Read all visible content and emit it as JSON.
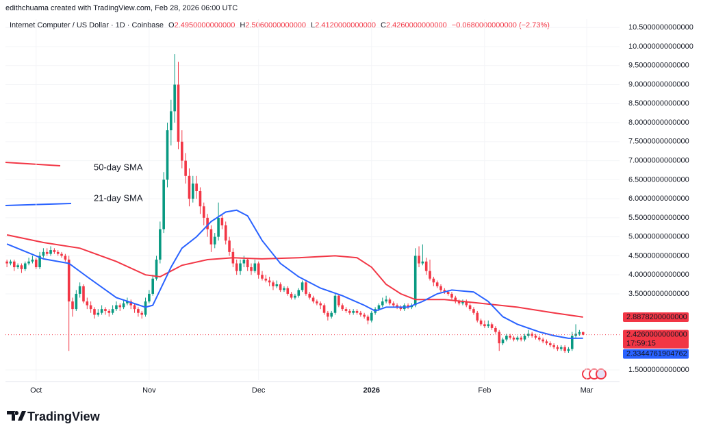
{
  "header": {
    "credit": "edithchuama created with TradingView.com, Feb 28, 2026 06:00 UTC",
    "symbol": "Internet Computer / US Dollar · 1D · Coinbase",
    "ohlc": [
      {
        "label": "O",
        "value": "2.4950000000000"
      },
      {
        "label": "H",
        "value": "2.5060000000000"
      },
      {
        "label": "L",
        "value": "2.4120000000000"
      },
      {
        "label": "C",
        "value": "2.4260000000000"
      }
    ],
    "change": "−0.0680000000000 (−2.73%)"
  },
  "chart_data": {
    "type": "candlestick",
    "up_color": "#089981",
    "down_color": "#f23645",
    "grid": true,
    "xlim": [
      -0.4,
      168
    ],
    "xticks": [
      {
        "value": 8,
        "label": "Oct"
      },
      {
        "value": 39,
        "label": "Nov"
      },
      {
        "value": 69,
        "label": "Dec"
      },
      {
        "value": 100,
        "label": "2026"
      },
      {
        "value": 131,
        "label": "Feb"
      },
      {
        "value": 159,
        "label": "Mar"
      }
    ],
    "ylim": [
      1.23,
      10.72
    ],
    "yticks": [
      {
        "value": 1.5,
        "label": "1.5000000000000"
      },
      {
        "value": 3.5,
        "label": "3.5000000000000"
      },
      {
        "value": 4,
        "label": "4.0000000000000"
      },
      {
        "value": 4.5,
        "label": "4.5000000000000"
      },
      {
        "value": 5,
        "label": "5.0000000000000"
      },
      {
        "value": 5.5,
        "label": "5.5000000000000"
      },
      {
        "value": 6,
        "label": "6.0000000000000"
      },
      {
        "value": 6.5,
        "label": "6.5000000000000"
      },
      {
        "value": 7,
        "label": "7.0000000000000"
      },
      {
        "value": 7.5,
        "label": "7.5000000000000"
      },
      {
        "value": 8,
        "label": "8.0000000000000"
      },
      {
        "value": 8.5,
        "label": "8.5000000000000"
      },
      {
        "value": 9,
        "label": "9.0000000000000"
      },
      {
        "value": 9.5,
        "label": "9.5000000000000"
      },
      {
        "value": 10,
        "label": "10.0000000000000"
      },
      {
        "value": 10.5,
        "label": "10.5000000000000"
      }
    ],
    "candles": [
      [
        4.35,
        4.4,
        4.2,
        4.3
      ],
      [
        4.3,
        4.4,
        4.25,
        4.35
      ],
      [
        4.35,
        4.4,
        4.1,
        4.2
      ],
      [
        4.2,
        4.3,
        4.15,
        4.25
      ],
      [
        4.25,
        4.3,
        4.05,
        4.15
      ],
      [
        4.15,
        4.35,
        4.1,
        4.3
      ],
      [
        4.3,
        4.45,
        4.25,
        4.35
      ],
      [
        4.35,
        4.5,
        4.3,
        4.4
      ],
      [
        4.4,
        4.45,
        4.15,
        4.2
      ],
      [
        4.2,
        4.6,
        4.15,
        4.5
      ],
      [
        4.5,
        4.7,
        4.45,
        4.6
      ],
      [
        4.6,
        4.7,
        4.5,
        4.55
      ],
      [
        4.55,
        4.75,
        4.5,
        4.65
      ],
      [
        4.65,
        4.7,
        4.55,
        4.6
      ],
      [
        4.6,
        4.65,
        4.5,
        4.55
      ],
      [
        4.55,
        4.6,
        4.45,
        4.5
      ],
      [
        4.5,
        4.55,
        4.35,
        4.4
      ],
      [
        4.4,
        4.5,
        2.0,
        3.3
      ],
      [
        3.3,
        3.4,
        2.9,
        3.1
      ],
      [
        3.1,
        3.6,
        3.05,
        3.5
      ],
      [
        3.5,
        3.8,
        3.4,
        3.7
      ],
      [
        3.7,
        3.75,
        3.25,
        3.3
      ],
      [
        3.3,
        3.4,
        3.1,
        3.2
      ],
      [
        3.2,
        3.3,
        3.0,
        3.1
      ],
      [
        3.1,
        3.15,
        2.85,
        2.95
      ],
      [
        2.95,
        3.1,
        2.9,
        3.0
      ],
      [
        3.0,
        3.2,
        2.95,
        3.1
      ],
      [
        3.1,
        3.15,
        2.95,
        3.05
      ],
      [
        3.05,
        3.1,
        2.9,
        3.0
      ],
      [
        3.0,
        3.2,
        2.95,
        3.1
      ],
      [
        3.1,
        3.3,
        3.05,
        3.2
      ],
      [
        3.2,
        3.25,
        3.05,
        3.15
      ],
      [
        3.15,
        3.35,
        3.1,
        3.25
      ],
      [
        3.25,
        3.4,
        3.2,
        3.3
      ],
      [
        3.3,
        3.35,
        3.1,
        3.2
      ],
      [
        3.2,
        3.25,
        3.0,
        3.1
      ],
      [
        3.1,
        3.15,
        2.9,
        3.0
      ],
      [
        3.0,
        3.05,
        2.85,
        2.95
      ],
      [
        2.95,
        3.4,
        2.9,
        3.3
      ],
      [
        3.3,
        3.6,
        3.25,
        3.5
      ],
      [
        3.5,
        4.0,
        3.45,
        3.9
      ],
      [
        3.9,
        4.5,
        3.85,
        4.4
      ],
      [
        4.4,
        5.4,
        4.3,
        5.2
      ],
      [
        5.2,
        6.7,
        5.1,
        6.5
      ],
      [
        6.5,
        8.0,
        6.3,
        7.8
      ],
      [
        7.8,
        8.6,
        7.4,
        8.3
      ],
      [
        8.3,
        9.8,
        8.0,
        9.0
      ],
      [
        9.0,
        9.6,
        7.3,
        7.5
      ],
      [
        7.5,
        7.8,
        6.8,
        7.0
      ],
      [
        7.0,
        7.2,
        6.4,
        6.6
      ],
      [
        6.6,
        6.8,
        5.8,
        6.0
      ],
      [
        6.0,
        6.6,
        5.9,
        6.4
      ],
      [
        6.4,
        6.6,
        6.0,
        6.2
      ],
      [
        6.2,
        6.3,
        5.6,
        5.8
      ],
      [
        5.8,
        5.9,
        5.3,
        5.5
      ],
      [
        5.5,
        5.6,
        5.0,
        5.2
      ],
      [
        5.2,
        5.3,
        4.6,
        4.8
      ],
      [
        4.8,
        5.1,
        4.7,
        5.0
      ],
      [
        5.0,
        5.9,
        4.9,
        5.5
      ],
      [
        5.5,
        5.6,
        5.2,
        5.3
      ],
      [
        5.3,
        5.4,
        4.8,
        4.9
      ],
      [
        4.9,
        5.0,
        4.5,
        4.6
      ],
      [
        4.6,
        4.7,
        4.2,
        4.3
      ],
      [
        4.3,
        4.4,
        4.0,
        4.1
      ],
      [
        4.1,
        4.4,
        4.0,
        4.3
      ],
      [
        4.3,
        4.5,
        4.2,
        4.4
      ],
      [
        4.4,
        4.45,
        4.1,
        4.2
      ],
      [
        4.2,
        4.3,
        4.0,
        4.1
      ],
      [
        4.1,
        4.4,
        4.05,
        4.3
      ],
      [
        4.3,
        4.35,
        3.9,
        4.0
      ],
      [
        4.0,
        4.1,
        3.85,
        3.9
      ],
      [
        3.9,
        4.0,
        3.8,
        3.85
      ],
      [
        3.85,
        3.95,
        3.7,
        3.8
      ],
      [
        3.8,
        3.85,
        3.6,
        3.7
      ],
      [
        3.7,
        3.85,
        3.65,
        3.75
      ],
      [
        3.75,
        3.8,
        3.55,
        3.6
      ],
      [
        3.6,
        3.7,
        3.55,
        3.65
      ],
      [
        3.65,
        3.7,
        3.45,
        3.5
      ],
      [
        3.5,
        3.55,
        3.35,
        3.4
      ],
      [
        3.4,
        3.5,
        3.35,
        3.45
      ],
      [
        3.45,
        3.65,
        3.4,
        3.6
      ],
      [
        3.6,
        3.85,
        3.55,
        3.8
      ],
      [
        3.8,
        3.85,
        3.45,
        3.5
      ],
      [
        3.5,
        3.55,
        3.35,
        3.4
      ],
      [
        3.4,
        3.45,
        3.25,
        3.3
      ],
      [
        3.3,
        3.35,
        3.2,
        3.25
      ],
      [
        3.25,
        3.3,
        3.1,
        3.2
      ],
      [
        3.2,
        3.25,
        2.95,
        3.0
      ],
      [
        3.0,
        3.05,
        2.8,
        2.9
      ],
      [
        2.9,
        3.05,
        2.85,
        3.0
      ],
      [
        3.0,
        3.5,
        2.95,
        3.45
      ],
      [
        3.45,
        3.5,
        3.15,
        3.2
      ],
      [
        3.2,
        3.25,
        3.05,
        3.1
      ],
      [
        3.1,
        3.15,
        3.0,
        3.05
      ],
      [
        3.05,
        3.1,
        2.95,
        3.0
      ],
      [
        3.0,
        3.1,
        2.95,
        3.05
      ],
      [
        3.05,
        3.1,
        2.95,
        3.0
      ],
      [
        3.0,
        3.05,
        2.9,
        2.95
      ],
      [
        2.95,
        3.0,
        2.85,
        2.9
      ],
      [
        2.9,
        2.95,
        2.7,
        2.8
      ],
      [
        2.8,
        3.05,
        2.75,
        3.0
      ],
      [
        3.0,
        3.15,
        2.95,
        3.1
      ],
      [
        3.1,
        3.25,
        3.05,
        3.2
      ],
      [
        3.2,
        3.4,
        3.15,
        3.3
      ],
      [
        3.3,
        3.45,
        3.25,
        3.35
      ],
      [
        3.35,
        3.4,
        3.2,
        3.25
      ],
      [
        3.25,
        3.3,
        3.15,
        3.2
      ],
      [
        3.2,
        3.25,
        3.1,
        3.15
      ],
      [
        3.15,
        3.2,
        3.05,
        3.1
      ],
      [
        3.1,
        3.25,
        3.05,
        3.2
      ],
      [
        3.2,
        3.25,
        3.1,
        3.15
      ],
      [
        3.15,
        3.25,
        3.1,
        3.2
      ],
      [
        3.2,
        4.7,
        3.15,
        4.5
      ],
      [
        4.5,
        4.75,
        4.2,
        4.3
      ],
      [
        4.3,
        4.8,
        4.25,
        4.35
      ],
      [
        4.35,
        4.45,
        4.0,
        4.1
      ],
      [
        4.1,
        4.4,
        3.85,
        3.9
      ],
      [
        3.9,
        3.95,
        3.7,
        3.8
      ],
      [
        3.8,
        3.85,
        3.65,
        3.7
      ],
      [
        3.7,
        3.75,
        3.55,
        3.6
      ],
      [
        3.6,
        3.65,
        3.5,
        3.55
      ],
      [
        3.55,
        3.6,
        3.45,
        3.5
      ],
      [
        3.5,
        3.55,
        3.35,
        3.4
      ],
      [
        3.4,
        3.45,
        3.25,
        3.3
      ],
      [
        3.3,
        3.35,
        3.2,
        3.25
      ],
      [
        3.25,
        3.35,
        3.2,
        3.3
      ],
      [
        3.3,
        3.35,
        3.15,
        3.2
      ],
      [
        3.2,
        3.25,
        3.05,
        3.1
      ],
      [
        3.1,
        3.15,
        2.95,
        3.0
      ],
      [
        3.0,
        3.05,
        2.75,
        2.8
      ],
      [
        2.8,
        2.85,
        2.65,
        2.7
      ],
      [
        2.7,
        2.8,
        2.6,
        2.65
      ],
      [
        2.65,
        2.8,
        2.6,
        2.7
      ],
      [
        2.7,
        2.75,
        2.55,
        2.6
      ],
      [
        2.6,
        2.65,
        2.45,
        2.5
      ],
      [
        2.5,
        2.55,
        2.0,
        2.2
      ],
      [
        2.2,
        2.35,
        2.15,
        2.3
      ],
      [
        2.3,
        2.45,
        2.25,
        2.4
      ],
      [
        2.4,
        2.45,
        2.3,
        2.35
      ],
      [
        2.35,
        2.4,
        2.25,
        2.3
      ],
      [
        2.3,
        2.4,
        2.25,
        2.35
      ],
      [
        2.35,
        2.4,
        2.25,
        2.3
      ],
      [
        2.3,
        2.45,
        2.25,
        2.4
      ],
      [
        2.4,
        2.55,
        2.35,
        2.45
      ],
      [
        2.45,
        2.5,
        2.35,
        2.4
      ],
      [
        2.4,
        2.45,
        2.3,
        2.35
      ],
      [
        2.35,
        2.4,
        2.25,
        2.3
      ],
      [
        2.3,
        2.35,
        2.2,
        2.25
      ],
      [
        2.25,
        2.3,
        2.15,
        2.2
      ],
      [
        2.2,
        2.25,
        2.1,
        2.15
      ],
      [
        2.15,
        2.2,
        2.05,
        2.1
      ],
      [
        2.1,
        2.15,
        2.0,
        2.05
      ],
      [
        2.05,
        2.15,
        2.0,
        2.1
      ],
      [
        2.1,
        2.15,
        1.95,
        2.0
      ],
      [
        2.0,
        2.1,
        1.95,
        2.05
      ],
      [
        2.05,
        2.5,
        2.0,
        2.4
      ],
      [
        2.4,
        2.7,
        2.35,
        2.45
      ],
      [
        2.45,
        2.55,
        2.4,
        2.494
      ],
      [
        2.495,
        2.506,
        2.412,
        2.426
      ]
    ],
    "price_label": "2.4260000000000",
    "countdown": "17:59:15",
    "series": [
      {
        "name": "50-day SMA",
        "color": "#f23645",
        "value_label": "2.8878200000000",
        "x": [
          0,
          10,
          20,
          30,
          38,
          42,
          48,
          55,
          62,
          70,
          80,
          90,
          96,
          100,
          104,
          108,
          112,
          120,
          130,
          140,
          150,
          158
        ],
        "values": [
          5.05,
          4.85,
          4.7,
          4.35,
          4.0,
          3.95,
          4.25,
          4.4,
          4.45,
          4.42,
          4.45,
          4.5,
          4.45,
          4.2,
          3.75,
          3.5,
          3.35,
          3.35,
          3.25,
          3.15,
          3.0,
          2.8878
        ]
      },
      {
        "name": "21-day SMA",
        "color": "#2962ff",
        "value_label": "2.3344761904762",
        "x": [
          0,
          10,
          17,
          22,
          30,
          38,
          40,
          42,
          45,
          48,
          52,
          56,
          60,
          63,
          66,
          70,
          75,
          80,
          86,
          92,
          98,
          101,
          104,
          110,
          114,
          118,
          122,
          128,
          132,
          136,
          140,
          146,
          150,
          154,
          158
        ],
        "values": [
          4.81,
          4.42,
          4.3,
          3.95,
          3.4,
          3.15,
          3.2,
          3.6,
          4.2,
          4.7,
          5.0,
          5.4,
          5.65,
          5.7,
          5.55,
          4.9,
          4.3,
          3.95,
          3.65,
          3.45,
          3.2,
          3.05,
          3.15,
          3.15,
          3.3,
          3.5,
          3.6,
          3.55,
          3.3,
          2.9,
          2.7,
          2.5,
          2.4,
          2.33,
          2.3344761904762
        ]
      }
    ]
  },
  "footer": {
    "brand": "TradingView"
  }
}
